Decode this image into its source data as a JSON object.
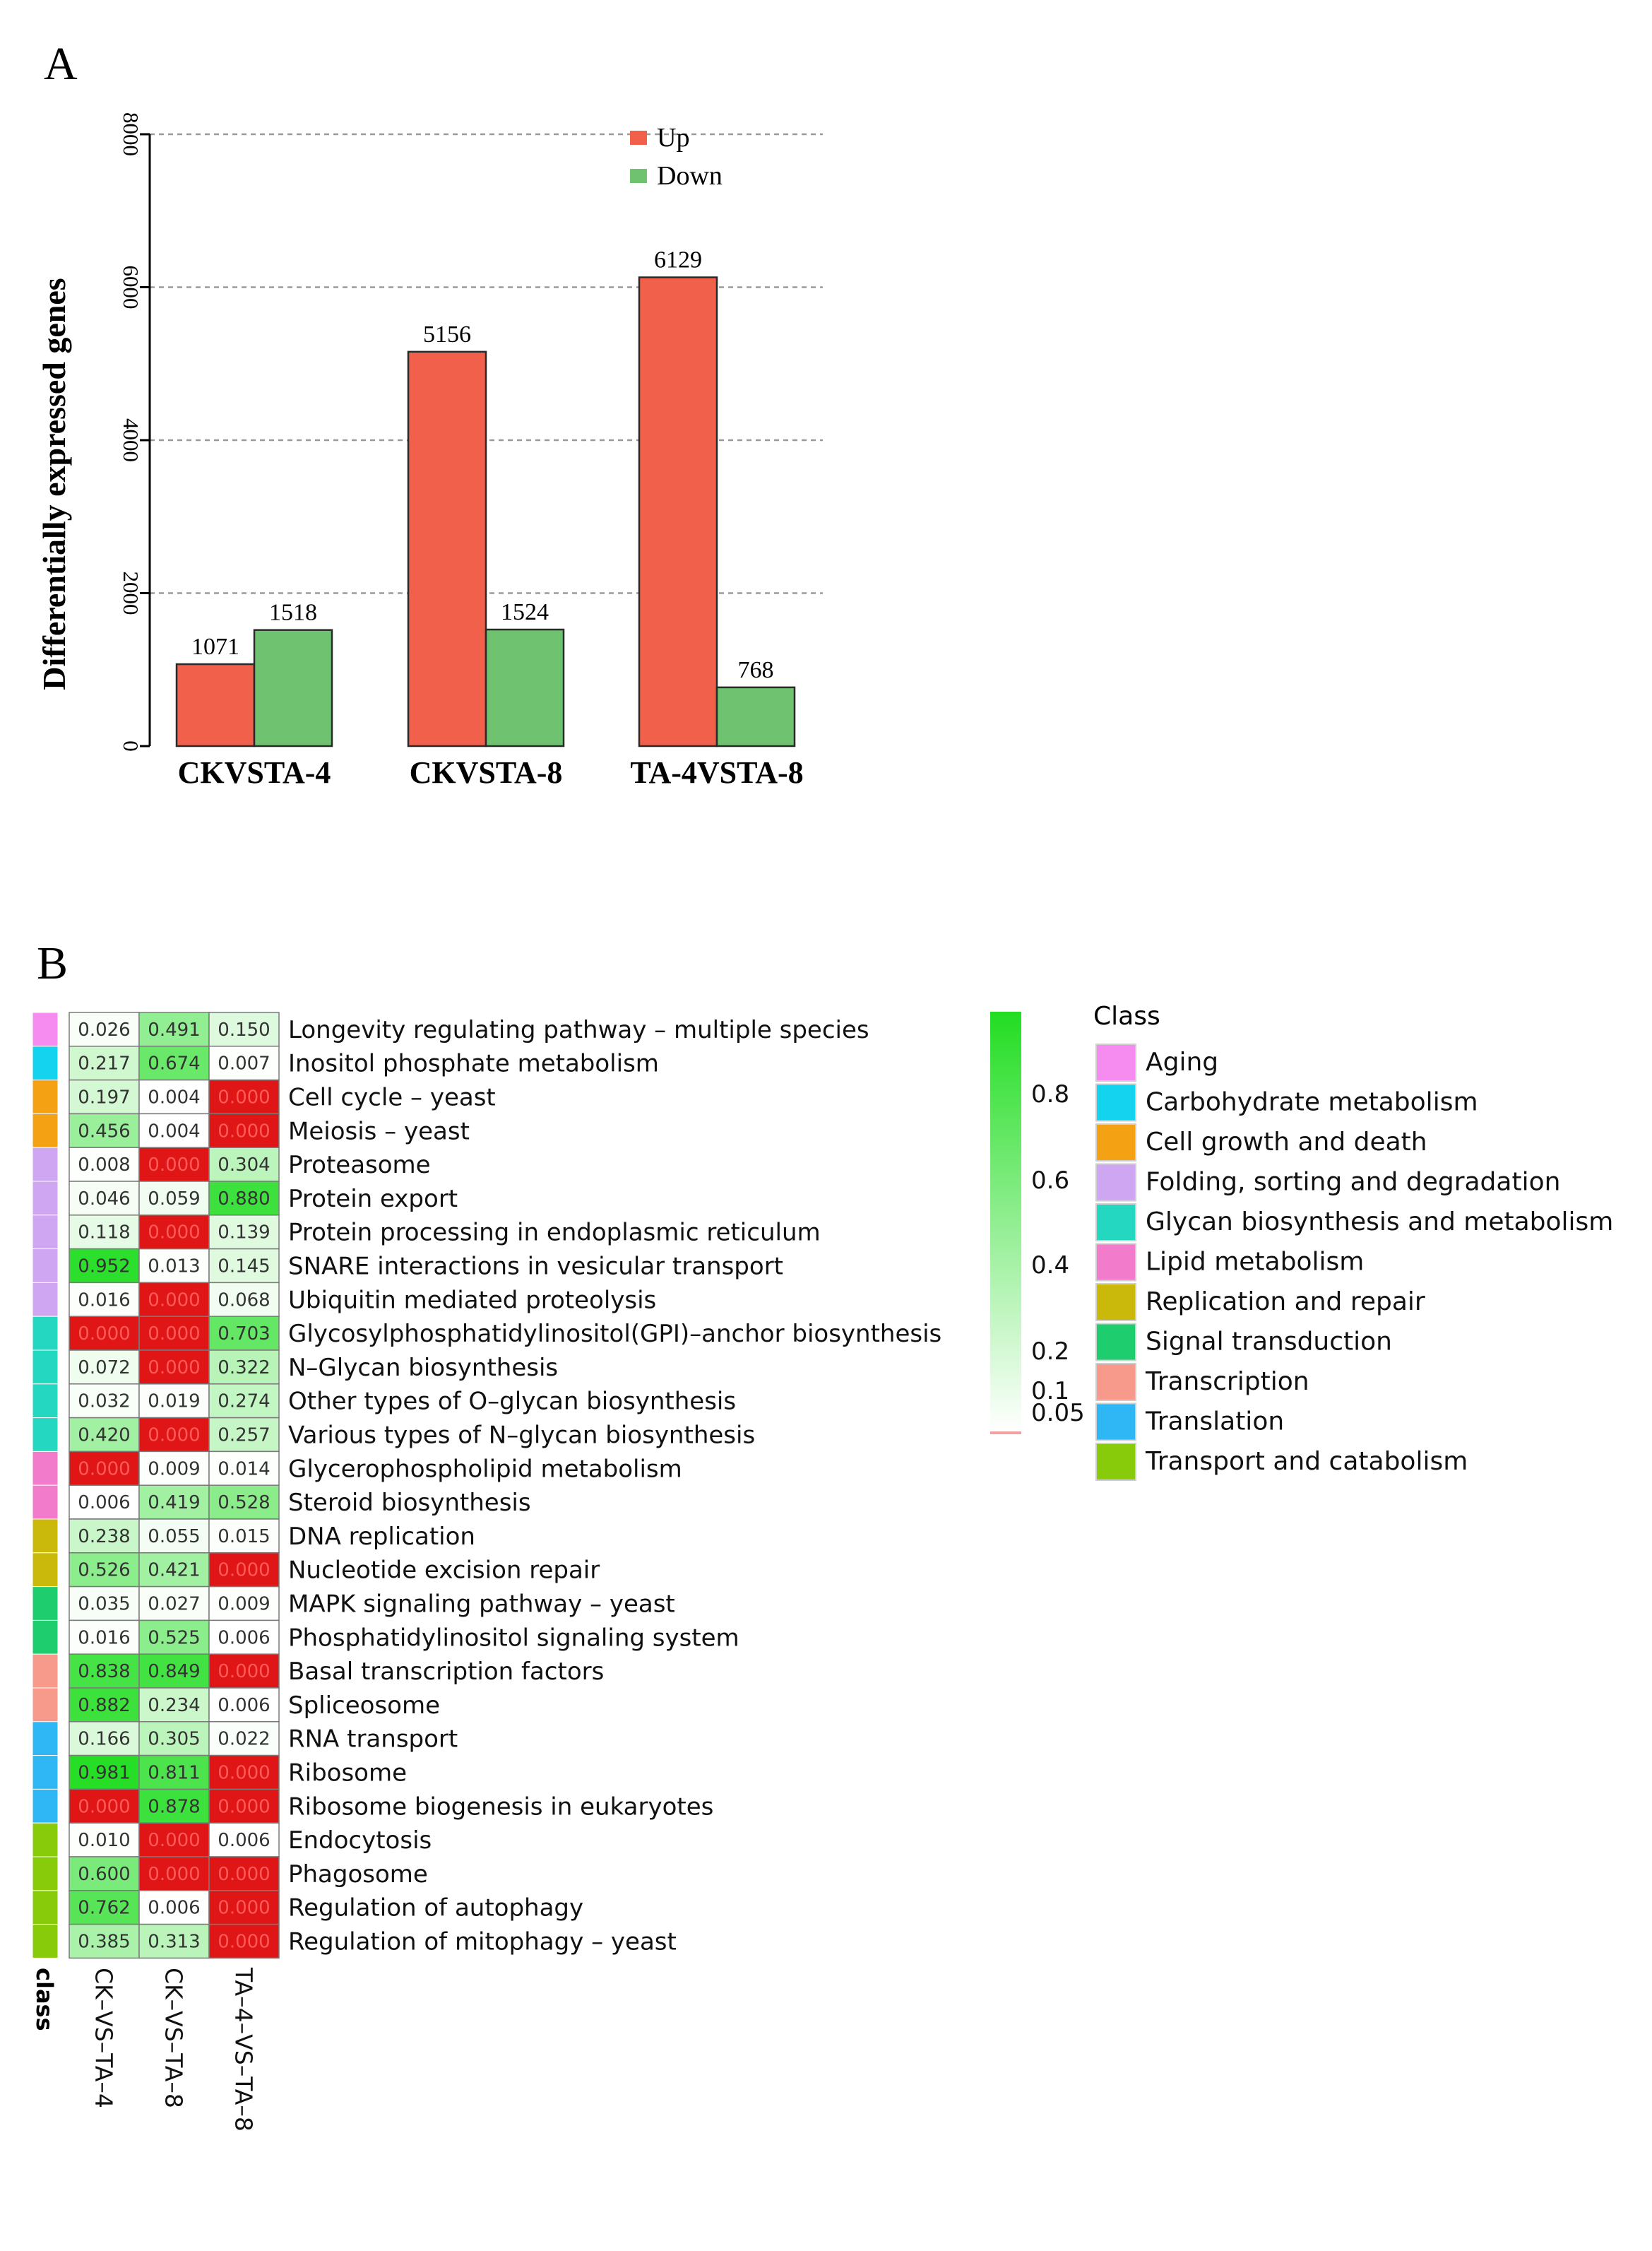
{
  "chart_data": [
    {
      "type": "bar",
      "panel_label": "A",
      "title": "",
      "xlabel": "",
      "ylabel": "Differentially expressed genes",
      "ylim": [
        0,
        8000
      ],
      "yticks": [
        "0",
        "2000",
        "4000",
        "6000",
        "8000"
      ],
      "ytick_values": [
        0,
        2000,
        4000,
        6000,
        8000
      ],
      "grid": true,
      "legend_position": "top-right",
      "categories": [
        "CKVSTA-4",
        "CKVSTA-8",
        "TA-4VSTA-8"
      ],
      "series": [
        {
          "name": "Up",
          "color": "#f0604a",
          "values": [
            1071,
            5156,
            6129
          ],
          "labels": [
            "1071",
            "5156",
            "6129"
          ]
        },
        {
          "name": "Down",
          "color": "#6fc270",
          "values": [
            1518,
            1524,
            768
          ],
          "labels": [
            "1518",
            "1524",
            "768"
          ]
        }
      ]
    },
    {
      "type": "heatmap",
      "panel_label": "B",
      "columns": [
        "CK–VS–TA–4",
        "CK–VS–TA–8",
        "TA–4–VS–TA–8"
      ],
      "class_column_label": "class",
      "rows": [
        {
          "pathway": "Longevity regulating pathway – multiple species",
          "class": "Aging",
          "values": [
            0.026,
            0.491,
            0.15
          ],
          "labels": [
            "0.026",
            "0.491",
            "0.150"
          ]
        },
        {
          "pathway": "Inositol phosphate metabolism",
          "class": "Carbohydrate metabolism",
          "values": [
            0.217,
            0.674,
            0.007
          ],
          "labels": [
            "0.217",
            "0.674",
            "0.007"
          ]
        },
        {
          "pathway": "Cell cycle – yeast",
          "class": "Cell growth and death",
          "values": [
            0.197,
            0.004,
            0.0
          ],
          "labels": [
            "0.197",
            "0.004",
            "0.000"
          ]
        },
        {
          "pathway": "Meiosis – yeast",
          "class": "Cell growth and death",
          "values": [
            0.456,
            0.004,
            0.0
          ],
          "labels": [
            "0.456",
            "0.004",
            "0.000"
          ]
        },
        {
          "pathway": "Proteasome",
          "class": "Folding, sorting and degradation",
          "values": [
            0.008,
            0.0,
            0.304
          ],
          "labels": [
            "0.008",
            "0.000",
            "0.304"
          ]
        },
        {
          "pathway": "Protein export",
          "class": "Folding, sorting and degradation",
          "values": [
            0.046,
            0.059,
            0.88
          ],
          "labels": [
            "0.046",
            "0.059",
            "0.880"
          ]
        },
        {
          "pathway": "Protein processing in endoplasmic reticulum",
          "class": "Folding, sorting and degradation",
          "values": [
            0.118,
            0.0,
            0.139
          ],
          "labels": [
            "0.118",
            "0.000",
            "0.139"
          ]
        },
        {
          "pathway": "SNARE interactions in vesicular transport",
          "class": "Folding, sorting and degradation",
          "values": [
            0.952,
            0.013,
            0.145
          ],
          "labels": [
            "0.952",
            "0.013",
            "0.145"
          ]
        },
        {
          "pathway": "Ubiquitin mediated proteolysis",
          "class": "Folding, sorting and degradation",
          "values": [
            0.016,
            0.0,
            0.068
          ],
          "labels": [
            "0.016",
            "0.000",
            "0.068"
          ]
        },
        {
          "pathway": "Glycosylphosphatidylinositol(GPI)–anchor biosynthesis",
          "class": "Glycan biosynthesis and metabolism",
          "values": [
            0.0,
            0.0,
            0.703
          ],
          "labels": [
            "0.000",
            "0.000",
            "0.703"
          ]
        },
        {
          "pathway": "N–Glycan biosynthesis",
          "class": "Glycan biosynthesis and metabolism",
          "values": [
            0.072,
            0.0,
            0.322
          ],
          "labels": [
            "0.072",
            "0.000",
            "0.322"
          ]
        },
        {
          "pathway": "Other types of O–glycan biosynthesis",
          "class": "Glycan biosynthesis and metabolism",
          "values": [
            0.032,
            0.019,
            0.274
          ],
          "labels": [
            "0.032",
            "0.019",
            "0.274"
          ]
        },
        {
          "pathway": "Various types of N–glycan biosynthesis",
          "class": "Glycan biosynthesis and metabolism",
          "values": [
            0.42,
            0.0,
            0.257
          ],
          "labels": [
            "0.420",
            "0.000",
            "0.257"
          ]
        },
        {
          "pathway": "Glycerophospholipid metabolism",
          "class": "Lipid metabolism",
          "values": [
            0.0,
            0.009,
            0.014
          ],
          "labels": [
            "0.000",
            "0.009",
            "0.014"
          ]
        },
        {
          "pathway": "Steroid biosynthesis",
          "class": "Lipid metabolism",
          "values": [
            0.006,
            0.419,
            0.528
          ],
          "labels": [
            "0.006",
            "0.419",
            "0.528"
          ]
        },
        {
          "pathway": "DNA replication",
          "class": "Replication and repair",
          "values": [
            0.238,
            0.055,
            0.015
          ],
          "labels": [
            "0.238",
            "0.055",
            "0.015"
          ]
        },
        {
          "pathway": "Nucleotide excision repair",
          "class": "Replication and repair",
          "values": [
            0.526,
            0.421,
            0.0
          ],
          "labels": [
            "0.526",
            "0.421",
            "0.000"
          ]
        },
        {
          "pathway": "MAPK signaling pathway – yeast",
          "class": "Signal transduction",
          "values": [
            0.035,
            0.027,
            0.009
          ],
          "labels": [
            "0.035",
            "0.027",
            "0.009"
          ]
        },
        {
          "pathway": "Phosphatidylinositol signaling system",
          "class": "Signal transduction",
          "values": [
            0.016,
            0.525,
            0.006
          ],
          "labels": [
            "0.016",
            "0.525",
            "0.006"
          ]
        },
        {
          "pathway": "Basal transcription factors",
          "class": "Transcription",
          "values": [
            0.838,
            0.849,
            0.0
          ],
          "labels": [
            "0.838",
            "0.849",
            "0.000"
          ]
        },
        {
          "pathway": "Spliceosome",
          "class": "Transcription",
          "values": [
            0.882,
            0.234,
            0.006
          ],
          "labels": [
            "0.882",
            "0.234",
            "0.006"
          ]
        },
        {
          "pathway": "RNA transport",
          "class": "Translation",
          "values": [
            0.166,
            0.305,
            0.022
          ],
          "labels": [
            "0.166",
            "0.305",
            "0.022"
          ]
        },
        {
          "pathway": "Ribosome",
          "class": "Translation",
          "values": [
            0.981,
            0.811,
            0.0
          ],
          "labels": [
            "0.981",
            "0.811",
            "0.000"
          ]
        },
        {
          "pathway": "Ribosome biogenesis in eukaryotes",
          "class": "Translation",
          "values": [
            0.0,
            0.878,
            0.0
          ],
          "labels": [
            "0.000",
            "0.878",
            "0.000"
          ]
        },
        {
          "pathway": "Endocytosis",
          "class": "Transport and catabolism",
          "values": [
            0.01,
            0.0,
            0.006
          ],
          "labels": [
            "0.010",
            "0.000",
            "0.006"
          ]
        },
        {
          "pathway": "Phagosome",
          "class": "Transport and catabolism",
          "values": [
            0.6,
            0.0,
            0.0
          ],
          "labels": [
            "0.600",
            "0.000",
            "0.000"
          ]
        },
        {
          "pathway": "Regulation of autophagy",
          "class": "Transport and catabolism",
          "values": [
            0.762,
            0.006,
            0.0
          ],
          "labels": [
            "0.762",
            "0.006",
            "0.000"
          ]
        },
        {
          "pathway": "Regulation of mitophagy – yeast",
          "class": "Transport and catabolism",
          "values": [
            0.385,
            0.313,
            0.0
          ],
          "labels": [
            "0.385",
            "0.313",
            "0.000"
          ]
        }
      ],
      "colorbar": {
        "ticks": [
          "0.8",
          "0.6",
          "0.4",
          "0.2",
          "0.1",
          "0.05"
        ],
        "tick_values": [
          0.8,
          0.6,
          0.4,
          0.2,
          0.1,
          0.05
        ],
        "range": [
          0,
          1
        ],
        "low_color": "#ffffff",
        "high_color": "#22dd22",
        "significant_color": "#e01515",
        "significant_threshold": 0.001
      },
      "class_legend": {
        "title": "Class",
        "items": [
          {
            "name": "Aging",
            "color": "#f78cf0"
          },
          {
            "name": "Carbohydrate metabolism",
            "color": "#14d3ee"
          },
          {
            "name": "Cell growth and death",
            "color": "#f4a214"
          },
          {
            "name": "Folding, sorting and degradation",
            "color": "#cfa6f2"
          },
          {
            "name": "Glycan biosynthesis and metabolism",
            "color": "#24d7c1"
          },
          {
            "name": "Lipid metabolism",
            "color": "#f37bcb"
          },
          {
            "name": "Replication and repair",
            "color": "#cab80a"
          },
          {
            "name": "Signal transduction",
            "color": "#1ece6e"
          },
          {
            "name": "Transcription",
            "color": "#f79a8c"
          },
          {
            "name": "Translation",
            "color": "#2fb6f4"
          },
          {
            "name": "Transport and catabolism",
            "color": "#88cb0b"
          }
        ]
      }
    }
  ]
}
